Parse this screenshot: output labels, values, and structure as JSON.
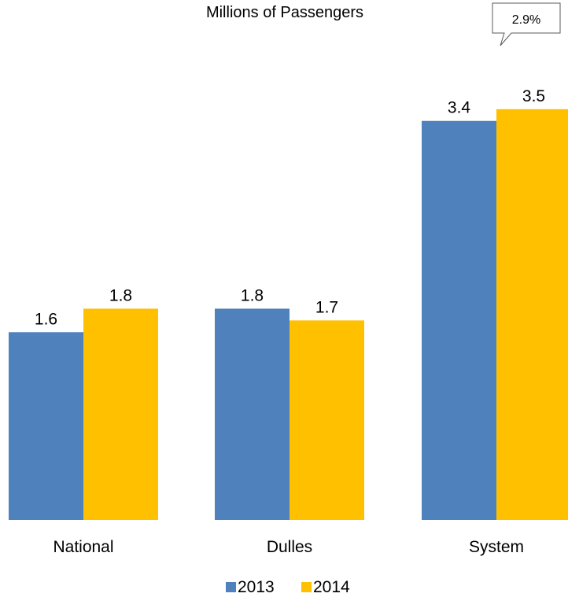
{
  "chart_data": {
    "type": "bar",
    "title": "Millions of Passengers",
    "categories": [
      "National",
      "Dulles",
      "System"
    ],
    "series": [
      {
        "name": "2013",
        "values": [
          1.6,
          1.8,
          3.4
        ],
        "color": "#4F81BD"
      },
      {
        "name": "2014",
        "values": [
          1.8,
          1.7,
          3.5
        ],
        "color": "#FFC000"
      }
    ],
    "data_labels": [
      [
        "1.6",
        "1.8",
        "3.4"
      ],
      [
        "1.8",
        "1.7",
        "3.5"
      ]
    ],
    "callout": {
      "text": "2.9%",
      "category": "System"
    },
    "legend_position": "bottom",
    "grid": false,
    "ylim": [
      0,
      3.5
    ]
  }
}
